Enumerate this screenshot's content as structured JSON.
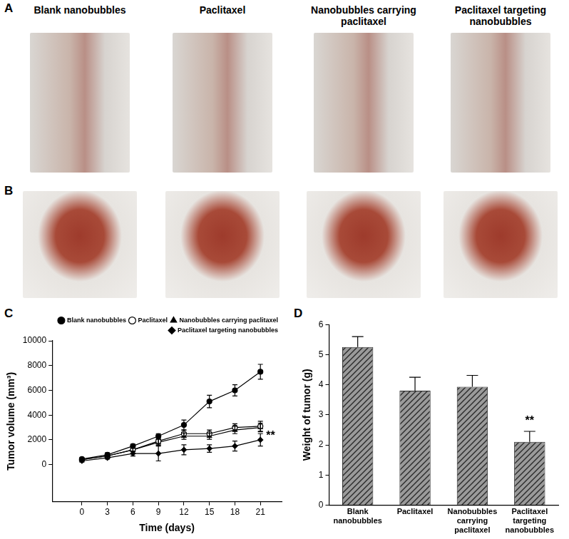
{
  "figure": {
    "panels": [
      {
        "label": "A",
        "captions": [
          "Blank nanobubbles",
          "Paclitaxel",
          "Nanobubbles carrying paclitaxel",
          "Paclitaxel targeting nanobubbles"
        ]
      },
      {
        "label": "B"
      }
    ]
  },
  "chart_data": [
    {
      "panel": "C",
      "type": "line",
      "x": [
        0,
        3,
        6,
        9,
        12,
        15,
        18,
        21
      ],
      "xlim": [
        -3.5,
        23.5
      ],
      "xticks": [
        0,
        3,
        6,
        9,
        12,
        15,
        18,
        21
      ],
      "ylim": [
        -3000,
        10000
      ],
      "yticks": [
        0,
        2000,
        4000,
        6000,
        8000,
        10000
      ],
      "x_label": "Time (days)",
      "y_label": "Tumor volume (mm³)",
      "grid": false,
      "legend": "upper right",
      "series": [
        {
          "name": "Blank nanobubbles",
          "color": "#000000",
          "marker": "circle",
          "values": [
            450,
            800,
            1500,
            2300,
            3200,
            5100,
            6000,
            7500
          ],
          "errors": [
            100,
            150,
            150,
            200,
            400,
            500,
            450,
            600
          ]
        },
        {
          "name": "Paclitaxel",
          "color": "#000000",
          "marker": "open_circle",
          "values": [
            400,
            700,
            1200,
            1900,
            2500,
            2500,
            3000,
            3100
          ],
          "errors": [
            100,
            150,
            150,
            300,
            300,
            300,
            300,
            400
          ]
        },
        {
          "name": "Nanobubbles carrying paclitaxel",
          "color": "#000000",
          "marker": "triangle",
          "values": [
            400,
            700,
            1200,
            1800,
            2300,
            2300,
            2800,
            3000
          ],
          "errors": [
            100,
            100,
            150,
            250,
            250,
            250,
            300,
            350
          ]
        },
        {
          "name": "Paclitaxel targeting nanobubbles",
          "color": "#000000",
          "marker": "diamond",
          "values": [
            300,
            550,
            900,
            900,
            1200,
            1300,
            1500,
            2000
          ],
          "errors": [
            100,
            100,
            200,
            600,
            400,
            300,
            400,
            500
          ]
        }
      ],
      "annotations": [
        {
          "text": "**",
          "x": 21,
          "y": 2400
        }
      ]
    },
    {
      "panel": "D",
      "type": "bar",
      "categories": [
        "Blank nanobubbles",
        "Paclitaxel",
        "Nanobubbles carrying paclitaxel",
        "Paclitaxel targeting nanobubbles"
      ],
      "values": [
        5.25,
        3.8,
        3.93,
        2.1
      ],
      "errors": [
        0.35,
        0.45,
        0.38,
        0.35
      ],
      "color": "#9a9a9a",
      "ylim": [
        0,
        6
      ],
      "yticks": [
        0,
        1,
        2,
        3,
        4,
        5,
        6
      ],
      "y_label": "Weight of tumor (g)",
      "grid": false,
      "annotations": [
        {
          "text": "**",
          "x": "Paclitaxel targeting nanobubbles",
          "y": 2.6
        }
      ]
    }
  ]
}
